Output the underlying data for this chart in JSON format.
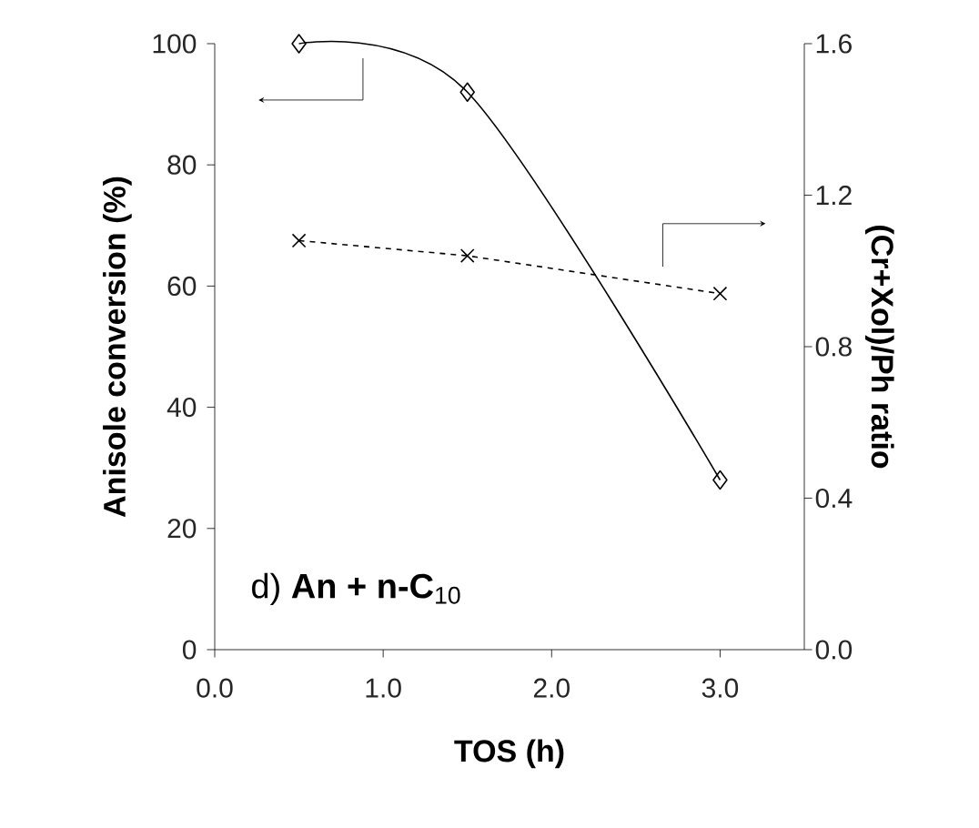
{
  "chart_data": {
    "type": "line",
    "xlabel": "TOS (h)",
    "ylabel": "Anisole conversion (%)",
    "y2label": "(Cr+Xol)/Ph ratio",
    "annotations": [
      "d) **An + n-C**$_{10}$"
    ],
    "x": [
      0.5,
      1.5,
      3.0
    ],
    "series": [
      {
        "color": "#000000",
        "values": [
          100,
          92,
          28
        ],
        "marker": "diamond",
        "line_style": "solid"
      },
      {
        "color": "#000000",
        "values": [
          1.08,
          1.04,
          0.94
        ],
        "marker": "cross",
        "line_style": "dashed",
        "axis": "y2"
      }
    ],
    "xlim": [
      0,
      3.5
    ],
    "xticks": [
      {
        "value": 0,
        "label": "0.0"
      },
      {
        "value": 1,
        "label": "1.0"
      },
      {
        "value": 2,
        "label": "2.0"
      },
      {
        "value": 3,
        "label": "3.0"
      }
    ],
    "ylim": [
      0,
      100
    ],
    "yticks": [
      0,
      20,
      40,
      60,
      80,
      100
    ],
    "y2lim": [
      0,
      1.6
    ],
    "y2ticks": [
      {
        "value": 0,
        "label": "0.0"
      },
      {
        "value": 0.4,
        "label": "0.4"
      },
      {
        "value": 0.8,
        "label": "0.8"
      },
      {
        "value": 1.2,
        "label": "1.2"
      },
      {
        "value": 1.6,
        "label": "1.6"
      }
    ],
    "grid": false
  }
}
